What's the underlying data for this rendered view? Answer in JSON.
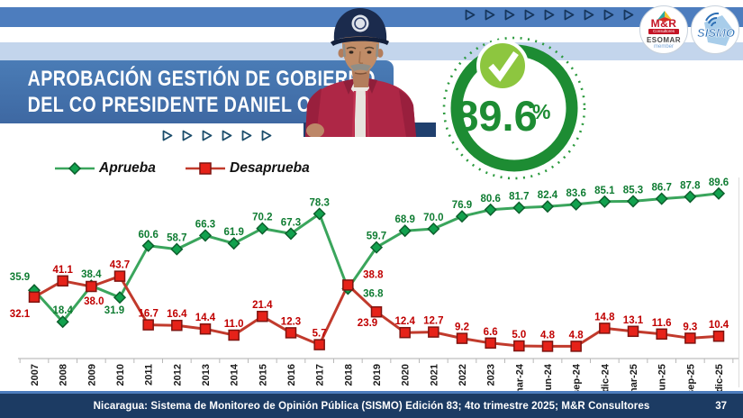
{
  "banner": {
    "title_line1": "APROBACIÓN GESTIÓN DE GOBIERNO",
    "title_line2": "DEL CO PRESIDENTE DANIEL ORTEGA"
  },
  "badge": {
    "value": "89.6",
    "percent_sign": "%"
  },
  "logos": {
    "mr": {
      "name": "M&R",
      "sub": "Consultores",
      "esomar": "ESOMAR",
      "member": "member"
    },
    "sismo": {
      "label": "SISMO"
    }
  },
  "decor": {
    "top_arrow_count": 9,
    "mid_arrow_count": 6
  },
  "footer": {
    "text": "Nicaragua: Sistema de Monitoreo de Opinión Pública (SISMO) Edición 83; 4to trimestre 2025; M&R Consultores",
    "page": "37"
  },
  "colors": {
    "banner_blue": "#3e68a2",
    "stripe_blue": "#4d7dbe",
    "stripe_light": "#c3d5ec",
    "footer_navy": "#1c3b63",
    "badge_green": "#1d8c33",
    "check_green": "#8dc63f",
    "aprueba_line": "#3aa55c",
    "aprueba_marker": "#12a14e",
    "aprueba_label": "#0f7c32",
    "desaprueba_line": "#c13a2c",
    "desaprueba_marker": "#e62219",
    "desaprueba_label": "#c00000"
  },
  "chart_data": {
    "type": "line",
    "title": "Aprobación Gestión de Gobierno del Co Presidente Daniel Ortega",
    "ylim": [
      0,
      100
    ],
    "grid": false,
    "legend_position": "top-left",
    "categories": [
      "2007",
      "2008",
      "2009",
      "2010",
      "2011",
      "2012",
      "2013",
      "2014",
      "2015",
      "2016",
      "2017",
      "2018",
      "2019",
      "2020",
      "2021",
      "2022",
      "2023",
      "mar-24",
      "jun-24",
      "sep-24",
      "dic-24",
      "mar-25",
      "jun-25",
      "sep-25",
      "dic-25"
    ],
    "series": [
      {
        "name": "Aprueba",
        "marker": "diamond",
        "values": [
          35.9,
          18.4,
          38.4,
          31.9,
          60.6,
          58.7,
          66.3,
          61.9,
          70.2,
          67.3,
          78.3,
          36.8,
          59.7,
          68.9,
          70.0,
          76.9,
          80.6,
          81.7,
          82.4,
          83.6,
          85.1,
          85.3,
          86.7,
          87.8,
          89.6
        ]
      },
      {
        "name": "Desaprueba",
        "marker": "square",
        "values": [
          32.1,
          41.1,
          38.0,
          43.7,
          16.7,
          16.4,
          14.4,
          11.0,
          21.4,
          12.3,
          5.7,
          38.8,
          23.9,
          12.4,
          12.7,
          9.2,
          6.6,
          5.0,
          4.8,
          4.8,
          14.8,
          13.1,
          11.6,
          9.3,
          10.4
        ]
      }
    ],
    "label_offsets": {
      "aprueba": {
        "0": [
          -16,
          -11
        ],
        "3": [
          -6,
          18
        ],
        "11": [
          28,
          9
        ]
      },
      "desaprueba": {
        "0": [
          -16,
          22
        ],
        "2": [
          3,
          20
        ],
        "11": [
          28,
          -8
        ],
        "12": [
          -10,
          16
        ]
      }
    }
  }
}
